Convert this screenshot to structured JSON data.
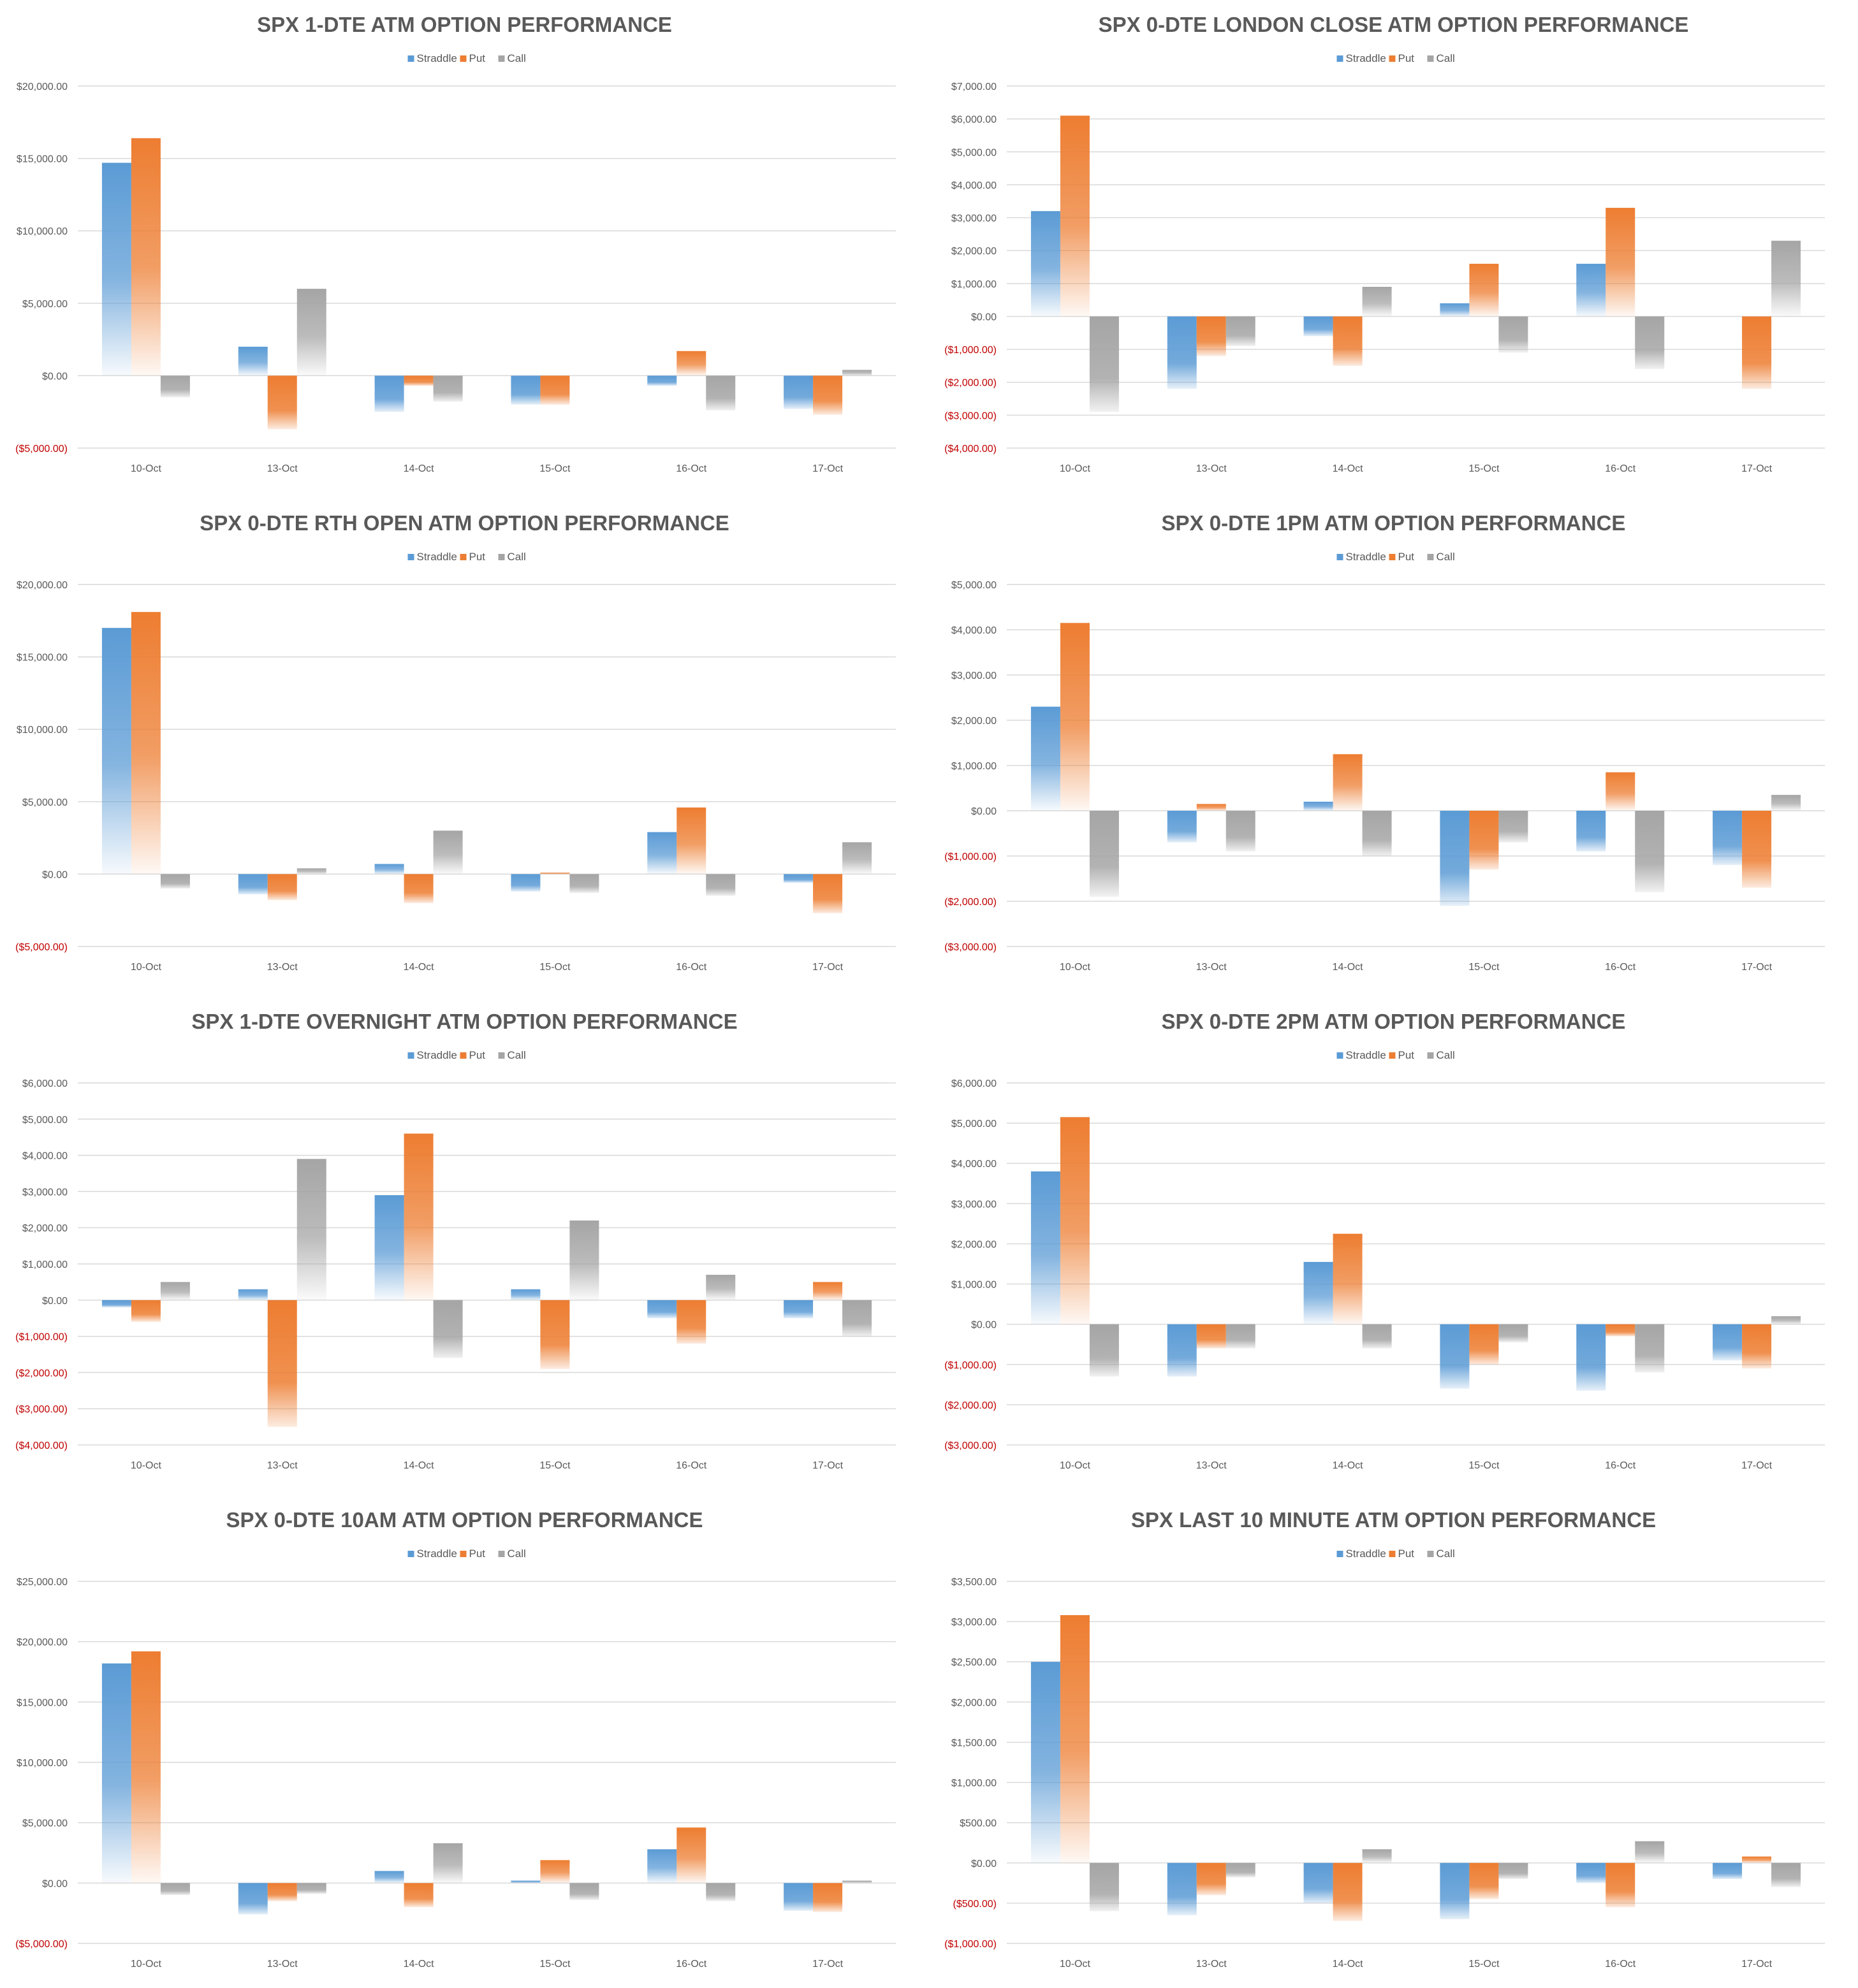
{
  "colors": {
    "straddle": "#5b9bd5",
    "put": "#ed7d31",
    "call": "#a5a5a5",
    "negative_tick": "#c00000",
    "grid": "#d9d9d9",
    "text": "#595959"
  },
  "chart_data": [
    {
      "type": "bar",
      "title": "SPX 1-DTE ATM OPTION PERFORMANCE",
      "categories": [
        "10-Oct",
        "13-Oct",
        "14-Oct",
        "15-Oct",
        "16-Oct",
        "17-Oct"
      ],
      "ylim": [
        -5000,
        20000
      ],
      "yticks": [
        20000,
        15000,
        10000,
        5000,
        0,
        -5000
      ],
      "ytick_labels": [
        "$20,000.00",
        "$15,000.00",
        "$10,000.00",
        "$5,000.00",
        "$0.00",
        "($5,000.00)"
      ],
      "legend": "top",
      "grid": true,
      "series": [
        {
          "name": "Straddle",
          "values": [
            14700,
            2000,
            -2500,
            -2000,
            -700,
            -2300
          ]
        },
        {
          "name": "Put",
          "values": [
            16400,
            -3700,
            -700,
            -2000,
            1700,
            -2700
          ]
        },
        {
          "name": "Call",
          "values": [
            -1500,
            6000,
            -1800,
            0,
            -2400,
            400
          ]
        }
      ]
    },
    {
      "type": "bar",
      "title": "SPX 0-DTE  LONDON CLOSE ATM OPTION PERFORMANCE",
      "categories": [
        "10-Oct",
        "13-Oct",
        "14-Oct",
        "15-Oct",
        "16-Oct",
        "17-Oct"
      ],
      "ylim": [
        -4000,
        7000
      ],
      "yticks": [
        7000,
        6000,
        5000,
        4000,
        3000,
        2000,
        1000,
        0,
        -1000,
        -2000,
        -3000,
        -4000
      ],
      "ytick_labels": [
        "$7,000.00",
        "$6,000.00",
        "$5,000.00",
        "$4,000.00",
        "$3,000.00",
        "$2,000.00",
        "$1,000.00",
        "$0.00",
        "($1,000.00)",
        "($2,000.00)",
        "($3,000.00)",
        "($4,000.00)"
      ],
      "legend": "top",
      "grid": true,
      "series": [
        {
          "name": "Straddle",
          "values": [
            3200,
            -2200,
            -600,
            400,
            1600,
            0
          ]
        },
        {
          "name": "Put",
          "values": [
            6100,
            -1200,
            -1500,
            1600,
            3300,
            -2200
          ]
        },
        {
          "name": "Call",
          "values": [
            -2900,
            -900,
            900,
            -1100,
            -1600,
            2300
          ]
        }
      ]
    },
    {
      "type": "bar",
      "title": "SPX 0-DTE RTH OPEN ATM OPTION PERFORMANCE",
      "categories": [
        "10-Oct",
        "13-Oct",
        "14-Oct",
        "15-Oct",
        "16-Oct",
        "17-Oct"
      ],
      "ylim": [
        -5000,
        20000
      ],
      "yticks": [
        20000,
        15000,
        10000,
        5000,
        0,
        -5000
      ],
      "ytick_labels": [
        "$20,000.00",
        "$15,000.00",
        "$10,000.00",
        "$5,000.00",
        "$0.00",
        "($5,000.00)"
      ],
      "legend": "top",
      "grid": true,
      "series": [
        {
          "name": "Straddle",
          "values": [
            17000,
            -1400,
            700,
            -1200,
            2900,
            -600
          ]
        },
        {
          "name": "Put",
          "values": [
            18100,
            -1800,
            -2000,
            100,
            4600,
            -2700
          ]
        },
        {
          "name": "Call",
          "values": [
            -1000,
            400,
            3000,
            -1300,
            -1500,
            2200
          ]
        }
      ]
    },
    {
      "type": "bar",
      "title": "SPX 0-DTE 1PM ATM OPTION PERFORMANCE",
      "categories": [
        "10-Oct",
        "13-Oct",
        "14-Oct",
        "15-Oct",
        "16-Oct",
        "17-Oct"
      ],
      "ylim": [
        -3000,
        5000
      ],
      "yticks": [
        5000,
        4000,
        3000,
        2000,
        1000,
        0,
        -1000,
        -2000,
        -3000
      ],
      "ytick_labels": [
        "$5,000.00",
        "$4,000.00",
        "$3,000.00",
        "$2,000.00",
        "$1,000.00",
        "$0.00",
        "($1,000.00)",
        "($2,000.00)",
        "($3,000.00)"
      ],
      "legend": "top",
      "grid": true,
      "series": [
        {
          "name": "Straddle",
          "values": [
            2300,
            -700,
            200,
            -2100,
            -900,
            -1200
          ]
        },
        {
          "name": "Put",
          "values": [
            4150,
            150,
            1250,
            -1300,
            850,
            -1700
          ]
        },
        {
          "name": "Call",
          "values": [
            -1900,
            -900,
            -1000,
            -700,
            -1800,
            350
          ]
        }
      ]
    },
    {
      "type": "bar",
      "title": "SPX 1-DTE OVERNIGHT ATM OPTION PERFORMANCE",
      "categories": [
        "10-Oct",
        "13-Oct",
        "14-Oct",
        "15-Oct",
        "16-Oct",
        "17-Oct"
      ],
      "ylim": [
        -4000,
        6000
      ],
      "yticks": [
        6000,
        5000,
        4000,
        3000,
        2000,
        1000,
        0,
        -1000,
        -2000,
        -3000,
        -4000
      ],
      "ytick_labels": [
        "$6,000.00",
        "$5,000.00",
        "$4,000.00",
        "$3,000.00",
        "$2,000.00",
        "$1,000.00",
        "$0.00",
        "($1,000.00)",
        "($2,000.00)",
        "($3,000.00)",
        "($4,000.00)"
      ],
      "legend": "top",
      "grid": true,
      "series": [
        {
          "name": "Straddle",
          "values": [
            -200,
            300,
            2900,
            300,
            -500,
            -500
          ]
        },
        {
          "name": "Put",
          "values": [
            -600,
            -3500,
            4600,
            -1900,
            -1200,
            500
          ]
        },
        {
          "name": "Call",
          "values": [
            500,
            3900,
            -1600,
            2200,
            700,
            -1000
          ]
        }
      ]
    },
    {
      "type": "bar",
      "title": "SPX 0-DTE 2PM ATM OPTION PERFORMANCE",
      "categories": [
        "10-Oct",
        "13-Oct",
        "14-Oct",
        "15-Oct",
        "16-Oct",
        "17-Oct"
      ],
      "ylim": [
        -3000,
        6000
      ],
      "yticks": [
        6000,
        5000,
        4000,
        3000,
        2000,
        1000,
        0,
        -1000,
        -2000,
        -3000
      ],
      "ytick_labels": [
        "$6,000.00",
        "$5,000.00",
        "$4,000.00",
        "$3,000.00",
        "$2,000.00",
        "$1,000.00",
        "$0.00",
        "($1,000.00)",
        "($2,000.00)",
        "($3,000.00)"
      ],
      "legend": "top",
      "grid": true,
      "series": [
        {
          "name": "Straddle",
          "values": [
            3800,
            -1300,
            1550,
            -1600,
            -1650,
            -900
          ]
        },
        {
          "name": "Put",
          "values": [
            5150,
            -600,
            2250,
            -1000,
            -300,
            -1100
          ]
        },
        {
          "name": "Call",
          "values": [
            -1300,
            -600,
            -600,
            -450,
            -1200,
            200
          ]
        }
      ]
    },
    {
      "type": "bar",
      "title": "SPX 0-DTE 10AM ATM OPTION PERFORMANCE",
      "categories": [
        "10-Oct",
        "13-Oct",
        "14-Oct",
        "15-Oct",
        "16-Oct",
        "17-Oct"
      ],
      "ylim": [
        -5000,
        25000
      ],
      "yticks": [
        25000,
        20000,
        15000,
        10000,
        5000,
        0,
        -5000
      ],
      "ytick_labels": [
        "$25,000.00",
        "$20,000.00",
        "$15,000.00",
        "$10,000.00",
        "$5,000.00",
        "$0.00",
        "($5,000.00)"
      ],
      "legend": "top",
      "grid": true,
      "series": [
        {
          "name": "Straddle",
          "values": [
            18200,
            -2600,
            1000,
            200,
            2800,
            -2300
          ]
        },
        {
          "name": "Put",
          "values": [
            19200,
            -1500,
            -2000,
            1900,
            4600,
            -2400
          ]
        },
        {
          "name": "Call",
          "values": [
            -1000,
            -900,
            3300,
            -1400,
            -1500,
            200
          ]
        }
      ]
    },
    {
      "type": "bar",
      "title": "SPX LAST 10 MINUTE ATM OPTION PERFORMANCE",
      "categories": [
        "10-Oct",
        "13-Oct",
        "14-Oct",
        "15-Oct",
        "16-Oct",
        "17-Oct"
      ],
      "ylim": [
        -1000,
        3500
      ],
      "yticks": [
        3500,
        3000,
        2500,
        2000,
        1500,
        1000,
        500,
        0,
        -500,
        -1000
      ],
      "ytick_labels": [
        "$3,500.00",
        "$3,000.00",
        "$2,500.00",
        "$2,000.00",
        "$1,500.00",
        "$1,000.00",
        "$500.00",
        "$0.00",
        "($500.00)",
        "($1,000.00)"
      ],
      "legend": "top",
      "grid": true,
      "series": [
        {
          "name": "Straddle",
          "values": [
            2500,
            -650,
            -500,
            -700,
            -250,
            -200
          ]
        },
        {
          "name": "Put",
          "values": [
            3080,
            -400,
            -720,
            -450,
            -550,
            80
          ]
        },
        {
          "name": "Call",
          "values": [
            -600,
            -180,
            170,
            -200,
            270,
            -300
          ]
        }
      ]
    }
  ]
}
